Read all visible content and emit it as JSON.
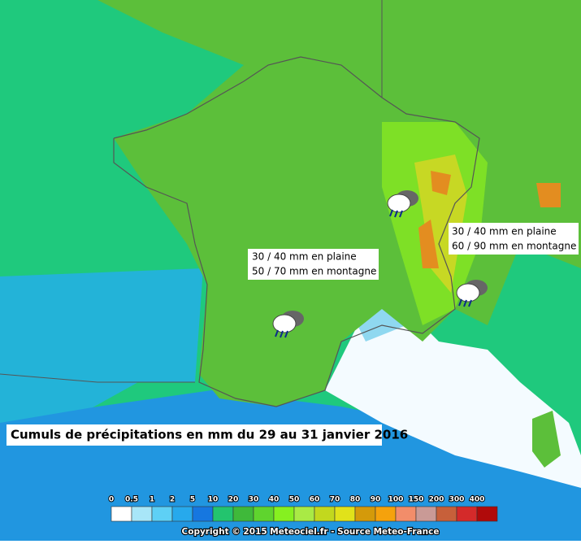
{
  "title": "Cumuls de précipitations en mm du 29 au 31 janvier 2016",
  "annotations": [
    {
      "lines": [
        "30 / 40 mm en plaine",
        "50 / 70 mm en montagne"
      ]
    },
    {
      "lines": [
        "30 / 40 mm en plaine",
        "60 / 90 mm en montagne"
      ]
    }
  ],
  "legend": {
    "labels": [
      "0",
      "0.5",
      "1",
      "2",
      "5",
      "10",
      "20",
      "30",
      "40",
      "50",
      "60",
      "70",
      "80",
      "90",
      "100",
      "150",
      "200",
      "300",
      "400"
    ],
    "colors": [
      "#ffffff",
      "#a8e6f8",
      "#5ed0f5",
      "#27a9ec",
      "#1677e0",
      "#23c46e",
      "#3fb93a",
      "#5fd42e",
      "#86f020",
      "#a9ea45",
      "#c2d81e",
      "#e1e21a",
      "#d49a0a",
      "#f5a20c",
      "#f28d6a",
      "#c99a96",
      "#c7603a",
      "#d42a2a",
      "#b00a0a"
    ]
  },
  "copyright": "Copyright © 2015 Meteociel.fr - Source Meteo-France"
}
